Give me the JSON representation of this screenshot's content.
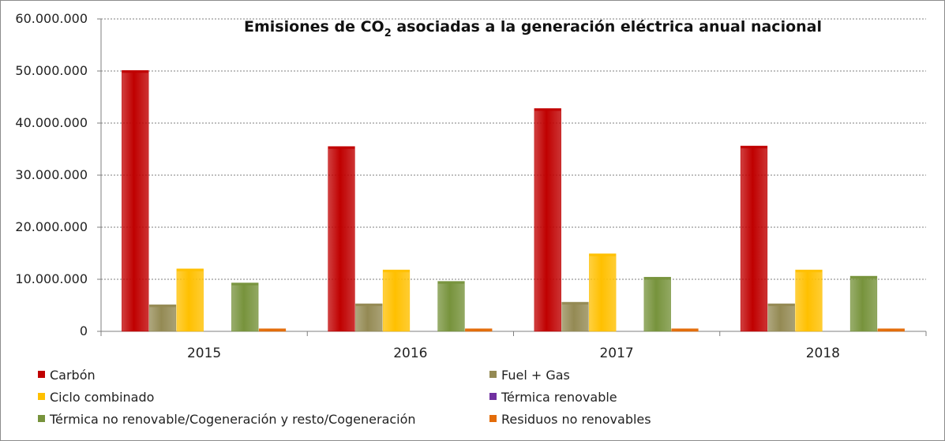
{
  "chart_data": {
    "type": "bar",
    "title": "Emisiones de CO₂ asociadas a la generación eléctrica anual nacional",
    "title_parts": {
      "before": "Emisiones de CO",
      "sub": "2",
      "after": " asociadas a la generación eléctrica anual nacional"
    },
    "categories": [
      "2015",
      "2016",
      "2017",
      "2018"
    ],
    "ylim": [
      0,
      60000000
    ],
    "yticks": [
      "0",
      "10.000.000",
      "20.000.000",
      "30.000.000",
      "40.000.000",
      "50.000.000",
      "60.000.000"
    ],
    "grid": true,
    "legend_position": "bottom",
    "series": [
      {
        "name": "Carbón",
        "color": "#c00000",
        "values": [
          50100000,
          35500000,
          42800000,
          35600000
        ]
      },
      {
        "name": "Fuel + Gas",
        "color": "#948a54",
        "values": [
          5100000,
          5300000,
          5600000,
          5300000
        ]
      },
      {
        "name": "Ciclo combinado",
        "color": "#ffc000",
        "values": [
          12000000,
          11800000,
          14900000,
          11800000
        ]
      },
      {
        "name": "Térmica renovable",
        "color": "#7030a0",
        "values": [
          0,
          0,
          0,
          0
        ]
      },
      {
        "name": "Térmica no renovable/Cogeneración y resto/Cogeneración",
        "color": "#77933c",
        "values": [
          9300000,
          9600000,
          10400000,
          10600000
        ]
      },
      {
        "name": "Residuos no renovables",
        "color": "#e36c09",
        "values": [
          500000,
          500000,
          500000,
          500000
        ]
      }
    ]
  }
}
